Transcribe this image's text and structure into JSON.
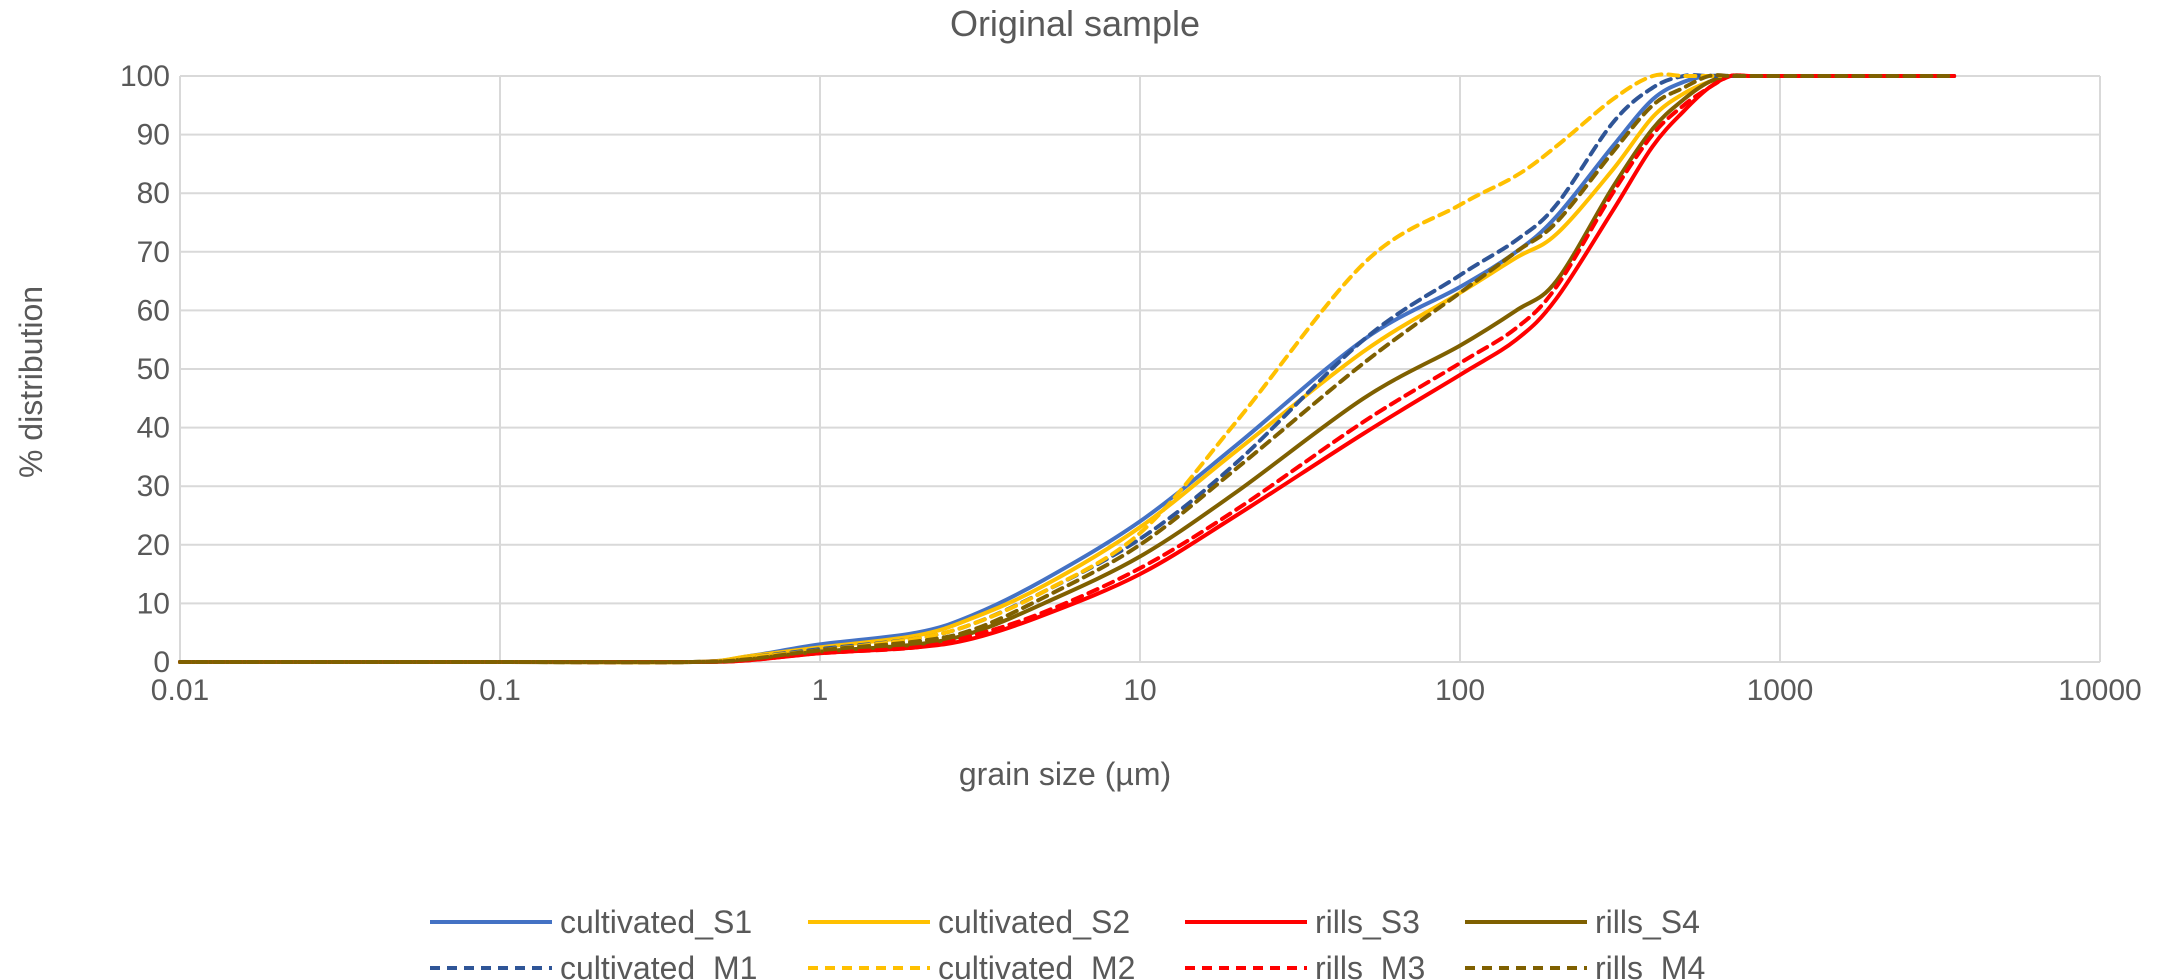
{
  "chart_data": {
    "type": "line",
    "title": "Original sample",
    "xlabel": "grain size (µm)",
    "ylabel": "% distribution",
    "xscale": "log",
    "xlim": [
      0.01,
      10000
    ],
    "ylim": [
      0,
      100
    ],
    "x_ticks": [
      "0.01",
      "0.1",
      "1",
      "10",
      "100",
      "1000",
      "10000"
    ],
    "y_ticks": [
      "0",
      "10",
      "20",
      "30",
      "40",
      "50",
      "60",
      "70",
      "80",
      "90",
      "100"
    ],
    "grid": true,
    "legend_position": "bottom",
    "x": [
      0.01,
      0.1,
      0.4,
      0.6,
      1,
      2,
      3,
      5,
      10,
      20,
      50,
      100,
      150,
      200,
      300,
      400,
      500,
      600,
      700,
      800,
      1000,
      3500
    ],
    "series": [
      {
        "name": "cultivated_S1",
        "color": "#4472C4",
        "dash": "solid",
        "values": [
          0,
          0,
          0,
          1,
          3,
          5,
          8,
          14,
          24,
          37,
          55,
          64,
          70,
          76,
          88,
          96,
          99,
          100,
          100,
          100,
          100,
          100
        ]
      },
      {
        "name": "cultivated_S2",
        "color": "#FFC000",
        "dash": "solid",
        "values": [
          0,
          0,
          0,
          1,
          2.5,
          4.5,
          7.5,
          13,
          23,
          36,
          53,
          63,
          69,
          73,
          84,
          93,
          97,
          99,
          100,
          100,
          100,
          100
        ]
      },
      {
        "name": "rills_S3",
        "color": "#FF0000",
        "dash": "solid",
        "values": [
          0,
          0,
          0,
          0.3,
          1.5,
          2.5,
          4,
          8,
          15,
          25,
          39,
          49,
          55,
          62,
          77,
          88,
          94,
          98,
          100,
          100,
          100,
          100
        ]
      },
      {
        "name": "rills_S4",
        "color": "#7F6000",
        "dash": "solid",
        "values": [
          0,
          0,
          0,
          0.5,
          1.8,
          3,
          5,
          10,
          18,
          29,
          45,
          54,
          60,
          65,
          81,
          91,
          96,
          99,
          100,
          100,
          100,
          100
        ]
      },
      {
        "name": "cultivated_M1",
        "color": "#2F5597",
        "dash": "dashed",
        "values": [
          0,
          0,
          0,
          0.8,
          2.2,
          4,
          6.5,
          12,
          21,
          34,
          55,
          66,
          72,
          78,
          92,
          98,
          100,
          100,
          100,
          100,
          100,
          100
        ]
      },
      {
        "name": "cultivated_M2",
        "color": "#FFC000",
        "dash": "dashed",
        "values": [
          0,
          0,
          0,
          0.8,
          2,
          4,
          6.5,
          12,
          22,
          41,
          68,
          78,
          83,
          88,
          96,
          100,
          100,
          100,
          100,
          100,
          100,
          100
        ]
      },
      {
        "name": "rills_M3",
        "color": "#FF0000",
        "dash": "dashed",
        "values": [
          0,
          0,
          0,
          0.3,
          1.5,
          2.5,
          4.5,
          8.5,
          16,
          26,
          41,
          51,
          57,
          64,
          80,
          90,
          95,
          98,
          100,
          100,
          100,
          100
        ]
      },
      {
        "name": "rills_M4",
        "color": "#7F6000",
        "dash": "dashed",
        "values": [
          0,
          0,
          0,
          0.5,
          2,
          3.5,
          5.5,
          11,
          20,
          33,
          51,
          63,
          70,
          75,
          87,
          95,
          98,
          100,
          100,
          100,
          100,
          100
        ]
      }
    ]
  }
}
